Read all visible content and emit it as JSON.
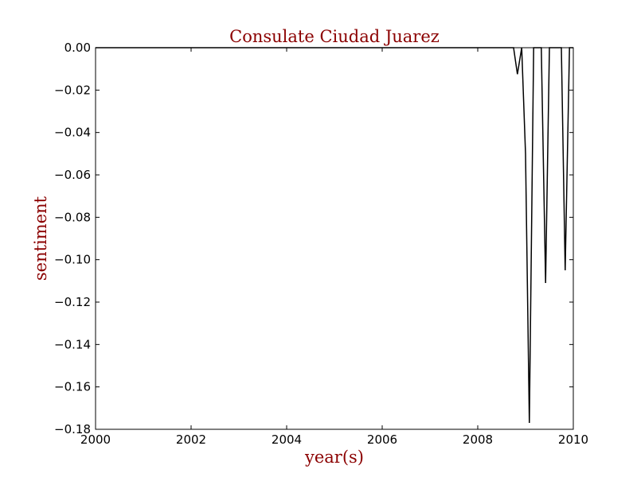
{
  "colors": {
    "title": "#8b0000",
    "line": "#000000",
    "axis": "#000000"
  },
  "chart_data": {
    "type": "line",
    "title": "Consulate Ciudad Juarez",
    "xlabel": "year(s)",
    "ylabel": "sentiment",
    "xlim": [
      2000,
      2010
    ],
    "ylim": [
      -0.18,
      0.0
    ],
    "xticks": [
      2000,
      2002,
      2004,
      2006,
      2008,
      2010
    ],
    "xtick_labels": [
      "2000",
      "2002",
      "2004",
      "2006",
      "2008",
      "2010"
    ],
    "yticks": [
      0.0,
      -0.02,
      -0.04,
      -0.06,
      -0.08,
      -0.1,
      -0.12,
      -0.14,
      -0.16,
      -0.18
    ],
    "ytick_labels": [
      "0.00",
      "−0.02",
      "−0.04",
      "−0.06",
      "−0.08",
      "−0.10",
      "−0.12",
      "−0.14",
      "−0.16",
      "−0.18"
    ],
    "grid": false,
    "series": [
      {
        "x": [
          2000.0,
          2008.75,
          2008.83,
          2008.92,
          2009.0,
          2009.08,
          2009.17,
          2009.33,
          2009.42,
          2009.5,
          2009.75,
          2009.83,
          2009.92,
          2010.0
        ],
        "y": [
          0.0,
          0.0,
          -0.0125,
          0.0,
          -0.05,
          -0.177,
          0.0,
          0.0,
          -0.111,
          0.0,
          0.0,
          -0.105,
          0.0,
          0.0
        ]
      }
    ]
  }
}
